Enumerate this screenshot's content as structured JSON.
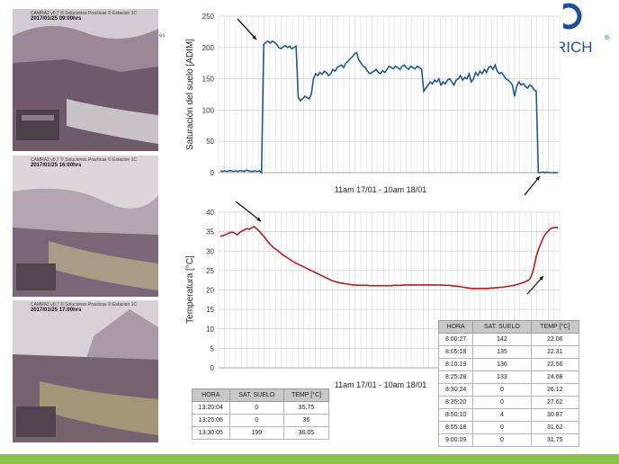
{
  "photos": [
    {
      "header": "CAMRA2 v0.7 © Soluciones Practicas © Estacion 1C",
      "datetime": "2017/01/25 09:00hrs"
    },
    {
      "header": "CAMRA2 v0.7 © Soluciones Practicas © Estacion 1C",
      "datetime": "2017/01/25 16:00hrs"
    },
    {
      "header": "CAMRA2 v0.7 © Soluciones Practicas © Estacion 1C",
      "datetime": "2017/01/25 17:00hrs"
    }
  ],
  "side_label": "es",
  "logo_text": "RICH",
  "logo_mark": "®",
  "colors": {
    "soil_line": "#1f5a8a",
    "temp_line": "#c0191f",
    "table_header": "#c8c8c8",
    "bottom_bar": "#8bc34a"
  },
  "chart_data": [
    {
      "type": "line",
      "ylabel": "Saturación del suelo [ADIM]",
      "xlabel": "11am 17/01 - 10am 18/01",
      "ylim": [
        0,
        250
      ],
      "yticks": [
        0,
        50,
        100,
        150,
        200,
        250
      ],
      "grid": true,
      "series": [
        {
          "values": [
            3,
            2,
            3,
            2,
            3,
            3,
            2,
            3,
            2,
            3,
            3,
            2,
            4,
            3,
            2,
            2,
            3,
            2,
            3,
            0,
            205,
            208,
            210,
            207,
            210,
            208,
            205,
            200,
            198,
            201,
            203,
            200,
            202,
            198,
            200,
            202,
            120,
            115,
            118,
            122,
            120,
            118,
            125,
            150,
            158,
            155,
            160,
            157,
            162,
            160,
            155,
            158,
            165,
            162,
            168,
            170,
            172,
            168,
            175,
            178,
            182,
            185,
            190,
            192,
            180,
            175,
            170,
            168,
            162,
            158,
            160,
            162,
            165,
            160,
            158,
            163,
            160,
            165,
            170,
            168,
            166,
            170,
            168,
            165,
            170,
            172,
            168,
            165,
            170,
            168,
            166,
            170,
            168,
            165,
            130,
            135,
            140,
            145,
            142,
            148,
            145,
            150,
            140,
            145,
            142,
            148,
            150,
            145,
            140,
            148,
            150,
            155,
            148,
            152,
            150,
            158,
            145,
            150,
            160,
            155,
            162,
            158,
            165,
            160,
            168,
            170,
            165,
            172,
            162,
            158,
            160,
            155,
            150,
            148,
            145,
            140,
            122,
            138,
            145,
            140,
            142,
            138,
            135,
            140,
            138,
            132,
            130,
            0,
            0,
            1,
            0,
            1,
            0,
            0,
            0,
            0,
            0
          ]
        }
      ],
      "annotations": [
        "arrow at peak",
        "arrow at drop"
      ]
    },
    {
      "type": "line",
      "ylabel": "Temperatura [°C]",
      "xlabel": "11am 17/01 - 10am 18/01",
      "ylim": [
        0,
        40
      ],
      "yticks": [
        0,
        5,
        10,
        15,
        20,
        25,
        30,
        35,
        40
      ],
      "grid": true,
      "series": [
        {
          "values": [
            33.8,
            34.0,
            34.2,
            34.5,
            34.8,
            34.9,
            34.6,
            34.2,
            34.8,
            35.2,
            35.5,
            35.8,
            35.6,
            36.0,
            36.3,
            35.8,
            35.2,
            34.5,
            33.8,
            33.0,
            32.2,
            31.5,
            30.9,
            30.5,
            30.0,
            29.5,
            29.0,
            28.6,
            28.2,
            27.8,
            27.4,
            27.0,
            26.7,
            26.4,
            26.1,
            25.8,
            25.5,
            25.2,
            24.9,
            24.6,
            24.3,
            24.0,
            23.7,
            23.4,
            23.1,
            22.8,
            22.5,
            22.3,
            22.1,
            21.9,
            21.8,
            21.7,
            21.6,
            21.5,
            21.4,
            21.3,
            21.3,
            21.2,
            21.2,
            21.2,
            21.2,
            21.2,
            21.1,
            21.1,
            21.1,
            21.1,
            21.1,
            21.1,
            21.1,
            21.1,
            21.1,
            21.1,
            21.2,
            21.2,
            21.2,
            21.2,
            21.3,
            21.3,
            21.3,
            21.3,
            21.3,
            21.3,
            21.3,
            21.3,
            21.3,
            21.3,
            21.3,
            21.3,
            21.3,
            21.3,
            21.3,
            21.3,
            21.3,
            21.2,
            21.2,
            21.2,
            21.1,
            21.0,
            21.0,
            20.9,
            20.8,
            20.7,
            20.6,
            20.5,
            20.4,
            20.4,
            20.4,
            20.4,
            20.4,
            20.4,
            20.4,
            20.4,
            20.5,
            20.5,
            20.6,
            20.6,
            20.7,
            20.7,
            20.8,
            20.9,
            21.0,
            21.1,
            21.2,
            21.4,
            21.6,
            21.8,
            22.0,
            22.3,
            22.6,
            23.5,
            25.5,
            28.5,
            30.5,
            32.0,
            33.5,
            34.5,
            35.2,
            35.8,
            36.0,
            36.1,
            36.0
          ],
          "color": "#c0191f"
        }
      ],
      "annotations": [
        "arrow at peak",
        "arrow at rise"
      ]
    }
  ],
  "table1": {
    "headers": [
      "HORA",
      "SAT. SUELO",
      "TEMP [°C]"
    ],
    "rows": [
      [
        "13:20:04",
        "0",
        "35.75"
      ],
      [
        "13:25:06",
        "0",
        "36"
      ],
      [
        "13:30:05",
        "199",
        "36.05"
      ]
    ]
  },
  "table2": {
    "headers": [
      "HORA",
      "SAT. SUELO",
      "TEMP [°C]"
    ],
    "rows": [
      [
        "8:00:27",
        "142",
        "22.06"
      ],
      [
        "8:05:18",
        "135",
        "22.31"
      ],
      [
        "8:10:19",
        "136",
        "22.56"
      ],
      [
        "8:25:28",
        "133",
        "24.68"
      ],
      [
        "8:30:24",
        "0",
        "26.12"
      ],
      [
        "8:35:20",
        "0",
        "27.62"
      ],
      [
        "8:50:10",
        "4",
        "30.87"
      ],
      [
        "8:55:18",
        "0",
        "31.62"
      ],
      [
        "9:00:09",
        "0",
        "31.75"
      ]
    ]
  }
}
